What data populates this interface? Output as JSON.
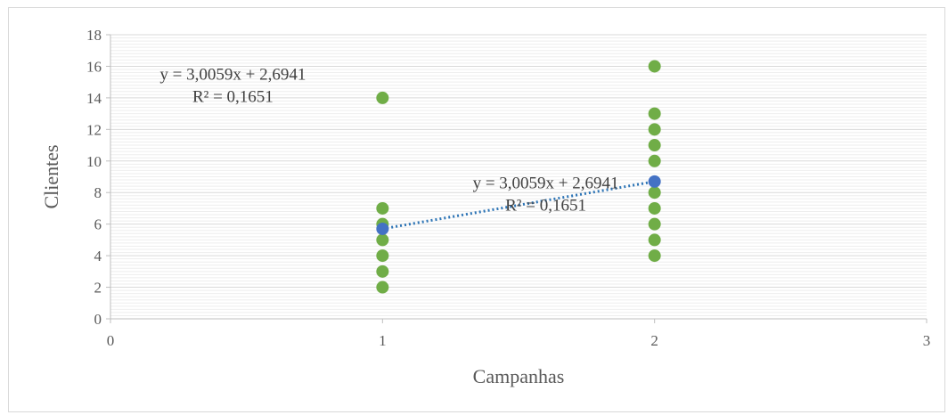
{
  "chart_data": {
    "type": "scatter",
    "title": "",
    "xlabel": "Campanhas",
    "ylabel": "Clientes",
    "xlim": [
      0,
      3
    ],
    "ylim": [
      0,
      18
    ],
    "x_ticks": [
      "0",
      "1",
      "2",
      "3"
    ],
    "y_ticks": [
      "0",
      "2",
      "4",
      "6",
      "8",
      "10",
      "12",
      "14",
      "16",
      "18"
    ],
    "grid": true,
    "series": [
      {
        "color": "#70ad47",
        "points": [
          {
            "x": 1,
            "y": 14
          },
          {
            "x": 1,
            "y": 7
          },
          {
            "x": 1,
            "y": 6
          },
          {
            "x": 1,
            "y": 5
          },
          {
            "x": 1,
            "y": 4
          },
          {
            "x": 1,
            "y": 3
          },
          {
            "x": 1,
            "y": 2
          },
          {
            "x": 2,
            "y": 16
          },
          {
            "x": 2,
            "y": 13
          },
          {
            "x": 2,
            "y": 12
          },
          {
            "x": 2,
            "y": 11
          },
          {
            "x": 2,
            "y": 10
          },
          {
            "x": 2,
            "y": 8
          },
          {
            "x": 2,
            "y": 7
          },
          {
            "x": 2,
            "y": 6
          },
          {
            "x": 2,
            "y": 5
          },
          {
            "x": 2,
            "y": 4
          }
        ]
      },
      {
        "color": "#4472c4",
        "points": [
          {
            "x": 1,
            "y": 5.7
          },
          {
            "x": 2,
            "y": 8.7
          }
        ]
      }
    ],
    "trendline": {
      "color": "#2e75b6",
      "style": "dotted",
      "x_from": 1,
      "x_to": 2,
      "y_from": 5.7,
      "y_to": 8.7
    },
    "annotations": [
      {
        "line1": "y = 3,0059x + 2,6941",
        "line2": "R² = 0,1651",
        "x": 0.45,
        "y": 15.5
      },
      {
        "line1": "y = 3,0059x + 2,6941",
        "line2": "R² = 0,1651",
        "x": 1.6,
        "y": 8.6
      }
    ]
  }
}
